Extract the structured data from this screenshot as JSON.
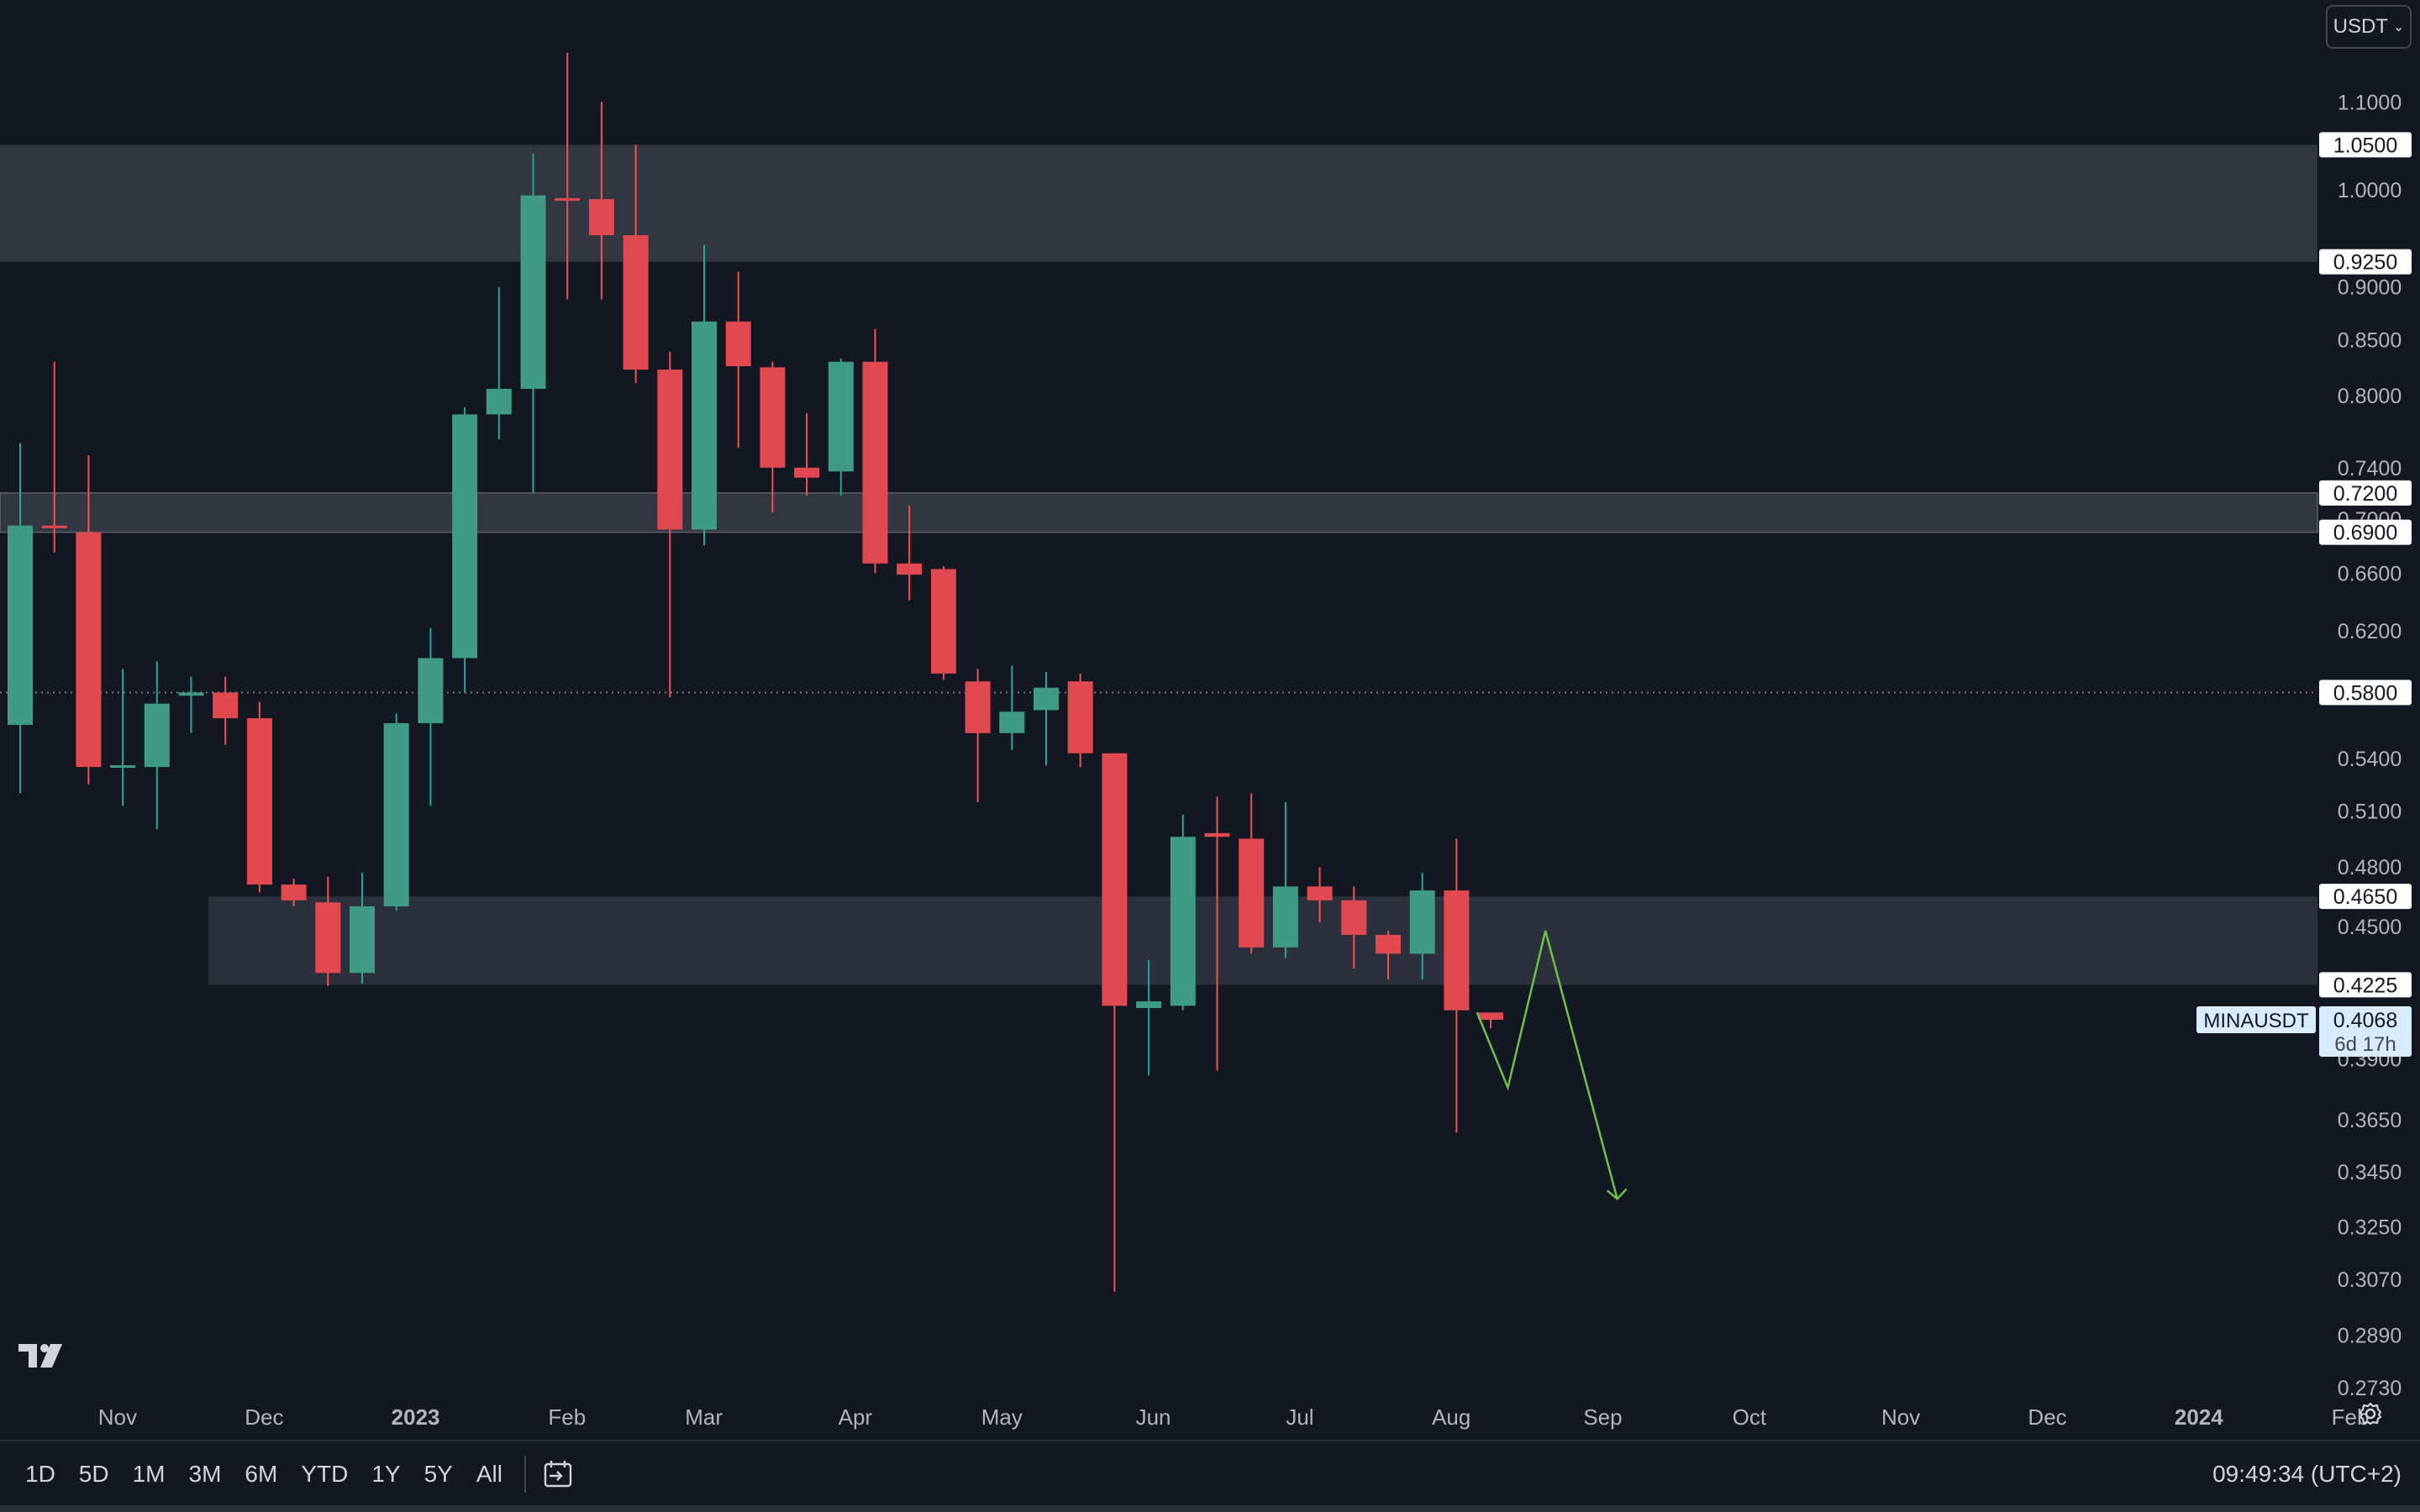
{
  "currency_selector": {
    "label": "USDT"
  },
  "range_buttons": [
    "1D",
    "5D",
    "1M",
    "3M",
    "6M",
    "YTD",
    "1Y",
    "5Y",
    "All"
  ],
  "clock": "09:49:34 (UTC+2)",
  "symbol_label": {
    "symbol": "MINAUSDT",
    "price": "0.4068",
    "countdown": "6d 17h"
  },
  "colors": {
    "background": "#131722",
    "up": "#26a69a",
    "down": "#ef5350",
    "up_body": "#3f9b84",
    "down_body": "#e0494f",
    "zone": "#363a45",
    "projection": "#6fbf4d",
    "axis_text": "#b2b5be",
    "price_label_bg": "#d9ecff"
  },
  "chart_data": {
    "type": "candlestick",
    "interval": "weekly",
    "symbol": "MINAUSDT",
    "y_axis_scale": "log",
    "y_range": [
      0.273,
      1.16
    ],
    "y_ticks": [
      "1.1000",
      "1.0000",
      "0.9000",
      "0.8500",
      "0.8000",
      "0.7400",
      "0.7000",
      "0.6600",
      "0.6200",
      "0.5400",
      "0.5100",
      "0.4800",
      "0.4500",
      "0.3900",
      "0.3650",
      "0.3450",
      "0.3250",
      "0.3070",
      "0.2890",
      "0.2730"
    ],
    "x_ticks": [
      {
        "label": "Nov",
        "bold": false
      },
      {
        "label": "Dec",
        "bold": false
      },
      {
        "label": "2023",
        "bold": true
      },
      {
        "label": "Feb",
        "bold": false
      },
      {
        "label": "Mar",
        "bold": false
      },
      {
        "label": "Apr",
        "bold": false
      },
      {
        "label": "May",
        "bold": false
      },
      {
        "label": "Jun",
        "bold": false
      },
      {
        "label": "Jul",
        "bold": false
      },
      {
        "label": "Aug",
        "bold": false
      },
      {
        "label": "Sep",
        "bold": false
      },
      {
        "label": "Oct",
        "bold": false
      },
      {
        "label": "Nov",
        "bold": false
      },
      {
        "label": "Dec",
        "bold": false
      },
      {
        "label": "2024",
        "bold": true
      },
      {
        "label": "Feb",
        "bold": false
      }
    ],
    "first_candle_week": "2022-10-10",
    "candles": [
      {
        "o": 0.56,
        "h": 0.76,
        "l": 0.52,
        "c": 0.695
      },
      {
        "o": 0.695,
        "h": 0.83,
        "l": 0.675,
        "c": 0.693
      },
      {
        "o": 0.69,
        "h": 0.75,
        "l": 0.525,
        "c": 0.535
      },
      {
        "o": 0.535,
        "h": 0.595,
        "l": 0.513,
        "c": 0.536
      },
      {
        "o": 0.535,
        "h": 0.6,
        "l": 0.5,
        "c": 0.573
      },
      {
        "o": 0.578,
        "h": 0.59,
        "l": 0.555,
        "c": 0.58
      },
      {
        "o": 0.58,
        "h": 0.59,
        "l": 0.548,
        "c": 0.564
      },
      {
        "o": 0.564,
        "h": 0.574,
        "l": 0.467,
        "c": 0.471
      },
      {
        "o": 0.471,
        "h": 0.474,
        "l": 0.46,
        "c": 0.463
      },
      {
        "o": 0.462,
        "h": 0.475,
        "l": 0.422,
        "c": 0.428
      },
      {
        "o": 0.428,
        "h": 0.477,
        "l": 0.423,
        "c": 0.46
      },
      {
        "o": 0.46,
        "h": 0.567,
        "l": 0.458,
        "c": 0.561
      },
      {
        "o": 0.561,
        "h": 0.622,
        "l": 0.513,
        "c": 0.602
      },
      {
        "o": 0.602,
        "h": 0.79,
        "l": 0.58,
        "c": 0.784
      },
      {
        "o": 0.784,
        "h": 0.9,
        "l": 0.763,
        "c": 0.806
      },
      {
        "o": 0.806,
        "h": 1.04,
        "l": 0.72,
        "c": 0.994
      },
      {
        "o": 0.991,
        "h": 1.16,
        "l": 0.888,
        "c": 0.989
      },
      {
        "o": 0.99,
        "h": 1.1,
        "l": 0.888,
        "c": 0.952
      },
      {
        "o": 0.952,
        "h": 1.05,
        "l": 0.811,
        "c": 0.823
      },
      {
        "o": 0.823,
        "h": 0.839,
        "l": 0.577,
        "c": 0.692
      },
      {
        "o": 0.692,
        "h": 0.942,
        "l": 0.68,
        "c": 0.867
      },
      {
        "o": 0.867,
        "h": 0.915,
        "l": 0.756,
        "c": 0.826
      },
      {
        "o": 0.825,
        "h": 0.83,
        "l": 0.705,
        "c": 0.74
      },
      {
        "o": 0.74,
        "h": 0.785,
        "l": 0.718,
        "c": 0.732
      },
      {
        "o": 0.737,
        "h": 0.833,
        "l": 0.718,
        "c": 0.83
      },
      {
        "o": 0.83,
        "h": 0.86,
        "l": 0.66,
        "c": 0.667
      },
      {
        "o": 0.667,
        "h": 0.71,
        "l": 0.641,
        "c": 0.659
      },
      {
        "o": 0.663,
        "h": 0.665,
        "l": 0.588,
        "c": 0.592
      },
      {
        "o": 0.587,
        "h": 0.595,
        "l": 0.515,
        "c": 0.555
      },
      {
        "o": 0.555,
        "h": 0.597,
        "l": 0.545,
        "c": 0.568
      },
      {
        "o": 0.569,
        "h": 0.593,
        "l": 0.536,
        "c": 0.583
      },
      {
        "o": 0.587,
        "h": 0.592,
        "l": 0.535,
        "c": 0.543
      },
      {
        "o": 0.543,
        "h": 0.543,
        "l": 0.303,
        "c": 0.413
      },
      {
        "o": 0.412,
        "h": 0.434,
        "l": 0.383,
        "c": 0.415
      },
      {
        "o": 0.413,
        "h": 0.508,
        "l": 0.411,
        "c": 0.496
      },
      {
        "o": 0.498,
        "h": 0.518,
        "l": 0.385,
        "c": 0.496
      },
      {
        "o": 0.495,
        "h": 0.52,
        "l": 0.437,
        "c": 0.44
      },
      {
        "o": 0.44,
        "h": 0.515,
        "l": 0.435,
        "c": 0.47
      },
      {
        "o": 0.47,
        "h": 0.48,
        "l": 0.452,
        "c": 0.463
      },
      {
        "o": 0.463,
        "h": 0.47,
        "l": 0.43,
        "c": 0.446
      },
      {
        "o": 0.446,
        "h": 0.448,
        "l": 0.425,
        "c": 0.437
      },
      {
        "o": 0.437,
        "h": 0.477,
        "l": 0.425,
        "c": 0.468
      },
      {
        "o": 0.468,
        "h": 0.495,
        "l": 0.36,
        "c": 0.411
      },
      {
        "o": 0.41,
        "h": 0.41,
        "l": 0.403,
        "c": 0.4068
      }
    ],
    "zones": [
      {
        "top": 1.05,
        "bottom": 0.925,
        "start_week": 0
      },
      {
        "top": 0.72,
        "bottom": 0.69,
        "start_week": 0
      },
      {
        "top": 0.465,
        "bottom": 0.4225,
        "start_week": 5.5
      }
    ],
    "horizontal_line": {
      "price": 0.58,
      "style": "dotted"
    },
    "price_labels": [
      "1.0500",
      "0.9250",
      "0.7200",
      "0.6900",
      "0.5800",
      "0.4650",
      "0.4225"
    ],
    "projection_path": [
      {
        "week": 42.6,
        "price": 0.41
      },
      {
        "week": 43.5,
        "price": 0.378
      },
      {
        "week": 44.6,
        "price": 0.448
      },
      {
        "week": 46.7,
        "price": 0.335
      }
    ]
  }
}
